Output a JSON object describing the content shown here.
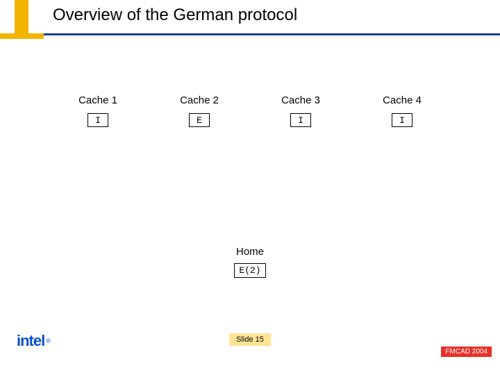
{
  "title": "Overview of the German protocol",
  "colors": {
    "mark": "#f3b400",
    "line": "#1b3e8a",
    "badge": "#ffe495",
    "logo": "#0a4fcf",
    "conf_bg": "#e7302a"
  },
  "caches": [
    {
      "label": "Cache 1",
      "state": "I"
    },
    {
      "label": "Cache 2",
      "state": "E"
    },
    {
      "label": "Cache 3",
      "state": "I"
    },
    {
      "label": "Cache 4",
      "state": "I"
    }
  ],
  "home": {
    "label": "Home",
    "state": "E(2)"
  },
  "slide_badge": "Slide 15",
  "logo_text": "intel",
  "logo_reg": "®",
  "conference": "FMCAD 2004"
}
